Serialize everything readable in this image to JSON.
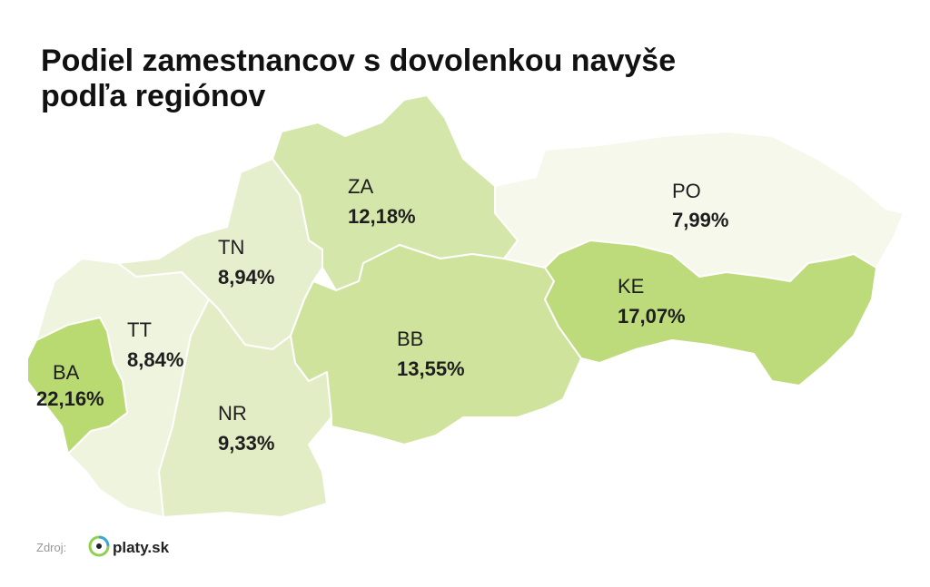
{
  "title": [
    "Podiel zamestnancov s dovolenkou navyše",
    "podľa regiónov"
  ],
  "regions": [
    {
      "code": "BA",
      "value_label": "22,16%",
      "color": "#b9d971"
    },
    {
      "code": "TT",
      "value_label": "8,84%",
      "color": "#eef4de"
    },
    {
      "code": "TN",
      "value_label": "8,94%",
      "color": "#e6efcd"
    },
    {
      "code": "NR",
      "value_label": "9,33%",
      "color": "#e2edc6"
    },
    {
      "code": "ZA",
      "value_label": "12,18%",
      "color": "#d4e6a9"
    },
    {
      "code": "BB",
      "value_label": "13,55%",
      "color": "#cfe39d"
    },
    {
      "code": "PO",
      "value_label": "7,99%",
      "color": "#f5f8ea"
    },
    {
      "code": "KE",
      "value_label": "17,07%",
      "color": "#bedb7b"
    }
  ],
  "source": {
    "label": "Zdroj:",
    "brand": "platy.sk"
  }
}
